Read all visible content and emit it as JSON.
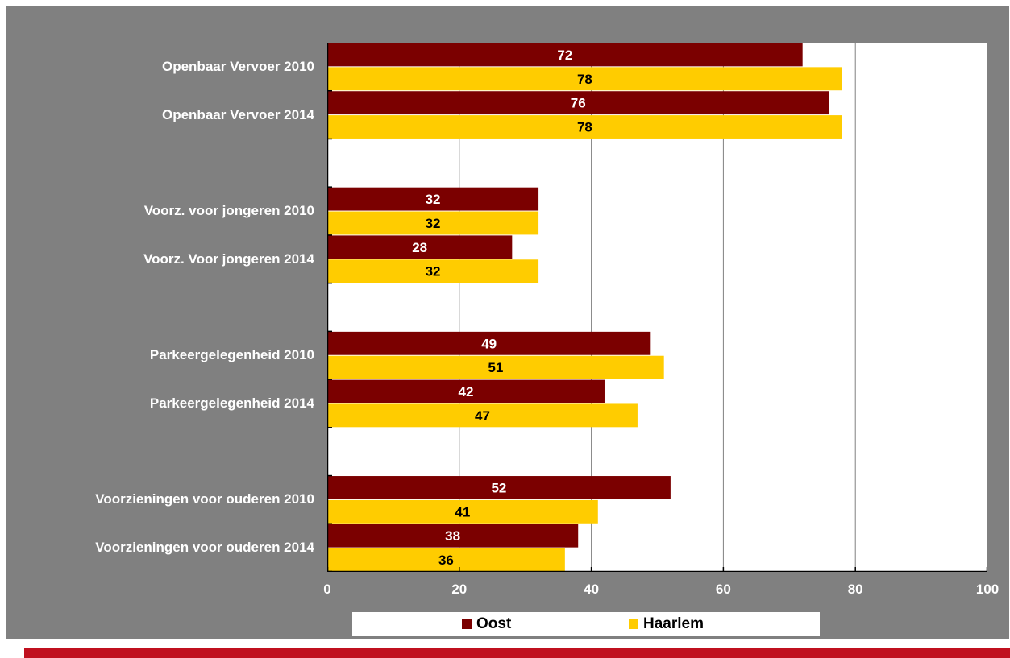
{
  "colors": {
    "oost": "#7b0000",
    "haarlem": "#ffcc00",
    "panel_bg": "#808080",
    "gridline": "#808080",
    "bottom_rule": "#c0101f"
  },
  "legend": {
    "oost_label": "Oost",
    "haarlem_label": "Haarlem"
  },
  "chart_data": {
    "type": "bar",
    "orientation": "horizontal",
    "title": "",
    "xlabel": "",
    "ylabel": "",
    "xlim": [
      0,
      100
    ],
    "x_ticks": [
      0,
      20,
      40,
      60,
      80,
      100
    ],
    "grid": true,
    "legend_position": "bottom",
    "category_groups": [
      [
        "Openbaar Vervoer 2010",
        "Openbaar Vervoer 2014"
      ],
      [
        "Voorz. voor jongeren 2010",
        "Voorz. Voor jongeren 2014"
      ],
      [
        "Parkeergelegenheid 2010",
        "Parkeergelegenheid 2014"
      ],
      [
        "Voorzieningen voor ouderen 2010",
        "Voorzieningen voor ouderen 2014"
      ]
    ],
    "categories": [
      "Openbaar Vervoer 2010",
      "Openbaar Vervoer 2014",
      "",
      "Voorz. voor jongeren 2010",
      "Voorz. Voor jongeren 2014",
      "",
      "Parkeergelegenheid 2010",
      "Parkeergelegenheid 2014",
      "",
      "Voorzieningen voor ouderen 2010",
      "Voorzieningen voor ouderen 2014"
    ],
    "series": [
      {
        "name": "Oost",
        "values": [
          72,
          76,
          null,
          32,
          28,
          null,
          49,
          42,
          null,
          52,
          38
        ]
      },
      {
        "name": "Haarlem",
        "values": [
          78,
          78,
          null,
          32,
          32,
          null,
          51,
          47,
          null,
          41,
          36
        ]
      }
    ]
  }
}
